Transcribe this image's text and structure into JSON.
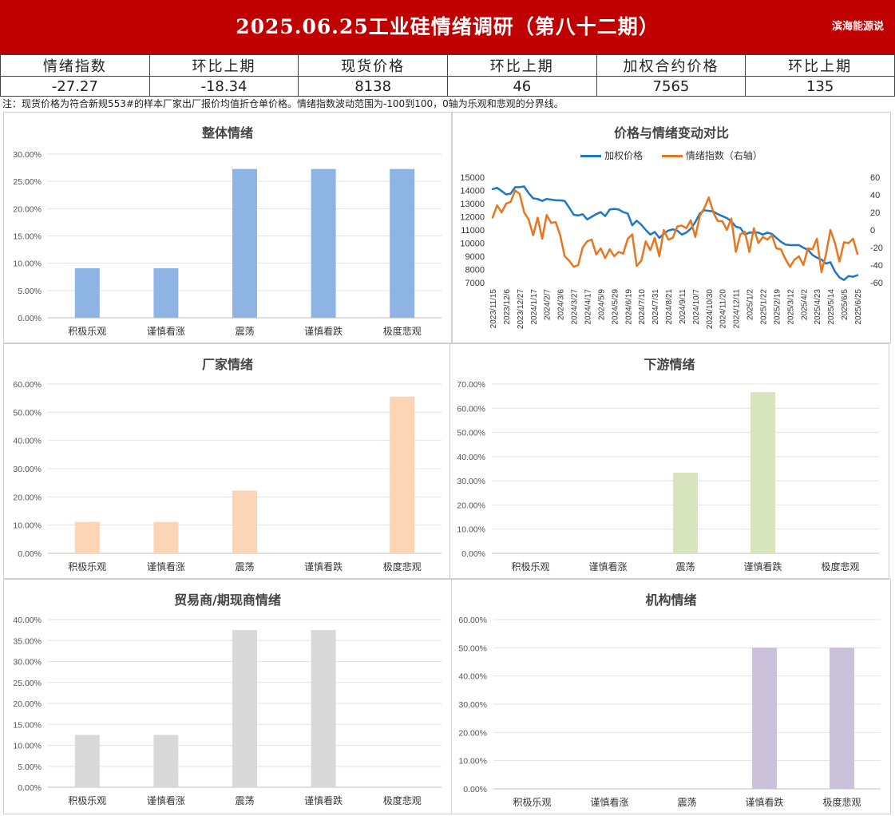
{
  "header": {
    "title": "2025.06.25工业硅情绪调研（第八十二期）",
    "brand": "滨海能源说",
    "bg_color": "#c00000"
  },
  "summary": {
    "headers": [
      "情绪指数",
      "环比上期",
      "现货价格",
      "环比上期",
      "加权合约价格",
      "环比上期"
    ],
    "values": [
      "-27.27",
      "-18.34",
      "8138",
      "46",
      "7565",
      "135"
    ]
  },
  "note": "注：现货价格为符合新规553#的样本厂家出厂报价均值折仓单价格。情绪指数波动范围为-100到100，0轴为乐观和悲观的分界线。",
  "chart_data": [
    {
      "type": "bar",
      "title": "整体情绪",
      "categories": [
        "积极乐观",
        "谨慎看涨",
        "震荡",
        "谨慎看跌",
        "极度悲观"
      ],
      "values": [
        9.09,
        9.09,
        27.27,
        27.27,
        27.27
      ],
      "ylim": [
        0,
        30
      ],
      "yticks": [
        "0.00%",
        "5.00%",
        "10.00%",
        "15.00%",
        "20.00%",
        "25.00%",
        "30.00%"
      ],
      "color": "#8eb4e3",
      "grid": true
    },
    {
      "type": "line",
      "title": "价格与情绪变动对比",
      "legend_position": "top",
      "x_tick_labels": [
        "2023/11/15",
        "2023/12/6",
        "2023/12/27",
        "2024/1/17",
        "2024/2/7",
        "2024/3/6",
        "2024/3/27",
        "2024/4/17",
        "2024/5/9",
        "2024/5/29",
        "2024/6/19",
        "2024/7/10",
        "2024/7/31",
        "2024/8/21",
        "2024/9/11",
        "2024/10/7",
        "2024/10/30",
        "2024/11/20",
        "2024/12/11",
        "2025/1/2",
        "2025/1/22",
        "2025/2/19",
        "2025/3/12",
        "2025/4/2",
        "2025/4/23",
        "2025/5/14",
        "2025/6/5",
        "2025/6/25"
      ],
      "y_left_lim": [
        7000,
        15000
      ],
      "y_left_ticks": [
        "7000",
        "8000",
        "9000",
        "10000",
        "11000",
        "12000",
        "13000",
        "14000",
        "15000"
      ],
      "y_right_lim": [
        -60,
        60
      ],
      "y_right_ticks": [
        "-60",
        "-40",
        "-20",
        "0",
        "20",
        "40",
        "60"
      ],
      "series": [
        {
          "name": "加权价格",
          "axis": "left",
          "color": "#1f77c4",
          "values": [
            14100,
            14200,
            13950,
            13700,
            13750,
            14250,
            14250,
            14300,
            13800,
            13400,
            13350,
            13200,
            13350,
            13300,
            13250,
            13250,
            13200,
            12700,
            12150,
            12100,
            12200,
            11800,
            12000,
            12200,
            12350,
            12050,
            12550,
            12600,
            12550,
            12350,
            12250,
            11350,
            11700,
            11400,
            11000,
            10650,
            10850,
            10400,
            10700,
            10950,
            11050,
            10950,
            10650,
            10800,
            11100,
            11600,
            12250,
            12500,
            12450,
            12400,
            12200,
            12050,
            11900,
            11650,
            11250,
            11150,
            10650,
            10800,
            10800,
            10800,
            10650,
            10800,
            10700,
            10400,
            10100,
            9900,
            9850,
            9850,
            9850,
            9650,
            9500,
            9100,
            8900,
            8750,
            8450,
            8550,
            7850,
            7400,
            7200,
            7500,
            7450,
            7565
          ]
        },
        {
          "name": "情绪指数（右轴）",
          "axis": "right",
          "color": "#e8761e",
          "values": [
            14,
            28,
            20,
            30,
            32,
            45,
            41,
            20,
            12,
            -6,
            14,
            -10,
            17,
            8,
            9,
            -6,
            -30,
            -35,
            -42,
            -40,
            -20,
            -13,
            -11,
            -28,
            -21,
            -32,
            -22,
            -30,
            -25,
            -27,
            -10,
            -5,
            -41,
            -35,
            -13,
            -23,
            -9,
            -30,
            0,
            -11,
            -9,
            4,
            5,
            2,
            11,
            -8,
            16,
            25,
            37,
            20,
            10,
            10,
            0,
            13,
            -25,
            -5,
            -2,
            -25,
            2,
            -15,
            -8,
            -11,
            -6,
            -21,
            -22,
            -33,
            -42,
            -34,
            -30,
            -40,
            -21,
            -22,
            -10,
            -48,
            -28,
            0,
            -15,
            -36,
            -14,
            -15,
            -10,
            -27.27
          ]
        }
      ]
    },
    {
      "type": "bar",
      "title": "厂家情绪",
      "categories": [
        "积极乐观",
        "谨慎看涨",
        "震荡",
        "谨慎看跌",
        "极度悲观"
      ],
      "values": [
        11.11,
        11.11,
        22.22,
        0,
        55.56
      ],
      "ylim": [
        0,
        60
      ],
      "yticks": [
        "0.00%",
        "10.00%",
        "20.00%",
        "30.00%",
        "40.00%",
        "50.00%",
        "60.00%"
      ],
      "color": "#fbd5b5",
      "grid": true
    },
    {
      "type": "bar",
      "title": "下游情绪",
      "categories": [
        "积极乐观",
        "谨慎看涨",
        "震荡",
        "谨慎看跌",
        "极度悲观"
      ],
      "values": [
        0,
        0,
        33.33,
        66.67,
        0
      ],
      "ylim": [
        0,
        70
      ],
      "yticks": [
        "0.00%",
        "10.00%",
        "20.00%",
        "30.00%",
        "40.00%",
        "50.00%",
        "60.00%",
        "70.00%"
      ],
      "color": "#d7e4bd",
      "grid": true
    },
    {
      "type": "bar",
      "title": "贸易商/期现商情绪",
      "categories": [
        "积极乐观",
        "谨慎看涨",
        "震荡",
        "谨慎看跌",
        "极度悲观"
      ],
      "values": [
        12.5,
        12.5,
        37.5,
        37.5,
        0
      ],
      "ylim": [
        0,
        40
      ],
      "yticks": [
        "0.00%",
        "5.00%",
        "10.00%",
        "15.00%",
        "20.00%",
        "25.00%",
        "30.00%",
        "35.00%",
        "40.00%"
      ],
      "color": "#d9d9d9",
      "grid": true
    },
    {
      "type": "bar",
      "title": "机构情绪",
      "categories": [
        "积极乐观",
        "谨慎看涨",
        "震荡",
        "谨慎看跌",
        "极度悲观"
      ],
      "values": [
        0,
        0,
        0,
        50,
        50
      ],
      "ylim": [
        0,
        60
      ],
      "yticks": [
        "0.00%",
        "10.00%",
        "20.00%",
        "30.00%",
        "40.00%",
        "50.00%",
        "60.00%"
      ],
      "color": "#ccc1da",
      "grid": true
    }
  ]
}
